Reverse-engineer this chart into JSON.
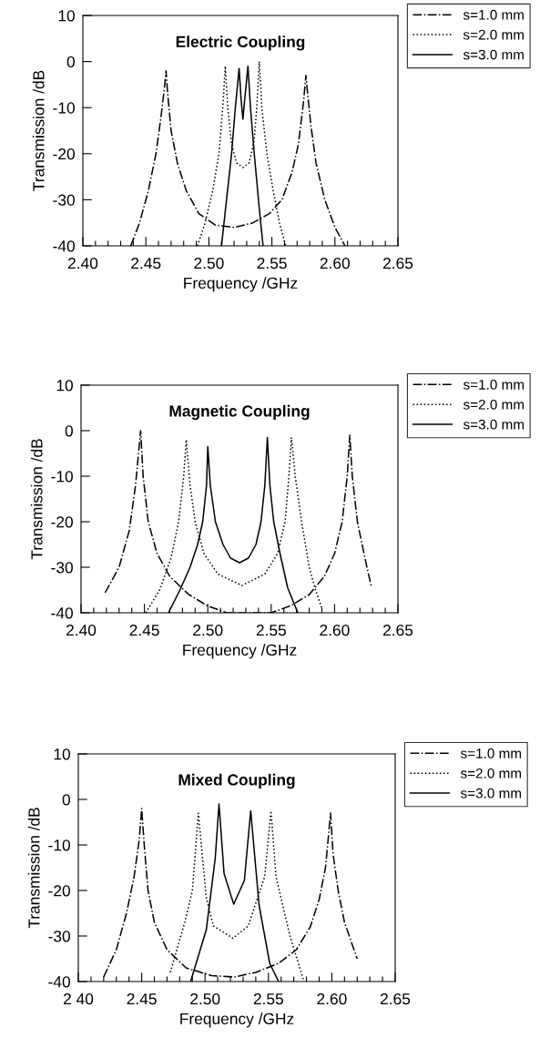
{
  "chart_data": [
    {
      "type": "line",
      "title": "Electric Coupling",
      "xlabel": "Frequency /GHz",
      "ylabel": "Transmission /dB",
      "legend": "top right",
      "grid": false,
      "xlim": [
        2.4,
        2.65
      ],
      "ylim": [
        -40,
        10
      ],
      "xticks": [
        {
          "value": 2.4,
          "label": "2.40"
        },
        {
          "value": 2.41,
          "label": null
        },
        {
          "value": 2.42,
          "label": null
        },
        {
          "value": 2.43,
          "label": null
        },
        {
          "value": 2.44,
          "label": null
        },
        {
          "value": 2.45,
          "label": "2.45"
        },
        {
          "value": 2.46,
          "label": null
        },
        {
          "value": 2.47,
          "label": null
        },
        {
          "value": 2.48,
          "label": null
        },
        {
          "value": 2.49,
          "label": null
        },
        {
          "value": 2.5,
          "label": "2.50"
        },
        {
          "value": 2.51,
          "label": null
        },
        {
          "value": 2.52,
          "label": null
        },
        {
          "value": 2.53,
          "label": null
        },
        {
          "value": 2.54,
          "label": null
        },
        {
          "value": 2.55,
          "label": "2.55"
        },
        {
          "value": 2.56,
          "label": null
        },
        {
          "value": 2.57,
          "label": null
        },
        {
          "value": 2.58,
          "label": null
        },
        {
          "value": 2.59,
          "label": null
        },
        {
          "value": 2.6,
          "label": "2.60"
        },
        {
          "value": 2.61,
          "label": null
        },
        {
          "value": 2.62,
          "label": null
        },
        {
          "value": 2.63,
          "label": null
        },
        {
          "value": 2.64,
          "label": null
        },
        {
          "value": 2.65,
          "label": "2.65"
        }
      ],
      "yticks": [
        10,
        0,
        -10,
        -20,
        -30,
        -40
      ],
      "series": [
        {
          "name": "s=1.0 mm",
          "color": "#000000",
          "line_style": "dashdot",
          "x": [
            2.438,
            2.445,
            2.452,
            2.458,
            2.462,
            2.465,
            2.466,
            2.467,
            2.47,
            2.475,
            2.482,
            2.492,
            2.505,
            2.52,
            2.535,
            2.548,
            2.558,
            2.566,
            2.571,
            2.575,
            2.577,
            2.578,
            2.581,
            2.585,
            2.592,
            2.6,
            2.608
          ],
          "values": [
            -40,
            -35,
            -28,
            -20,
            -12,
            -5,
            -2,
            -6,
            -15,
            -22,
            -28,
            -33,
            -35.5,
            -36,
            -35,
            -33,
            -30,
            -24,
            -18,
            -9,
            -3,
            -6,
            -14,
            -22,
            -30,
            -36,
            -40
          ]
        },
        {
          "name": "s=2.0 mm",
          "color": "#000000",
          "line_style": "dotted",
          "x": [
            2.491,
            2.497,
            2.503,
            2.508,
            2.511,
            2.513,
            2.515,
            2.518,
            2.522,
            2.527,
            2.532,
            2.536,
            2.538,
            2.54,
            2.542,
            2.546,
            2.551,
            2.556,
            2.561
          ],
          "values": [
            -40,
            -35,
            -28,
            -20,
            -10,
            -1,
            -10,
            -18,
            -22,
            -23,
            -22,
            -17,
            -10,
            0,
            -10,
            -20,
            -28,
            -35,
            -40
          ]
        },
        {
          "name": "s=3.0 mm",
          "color": "#000000",
          "line_style": "solid",
          "x": [
            2.51,
            2.514,
            2.518,
            2.521,
            2.524,
            2.5255,
            2.527,
            2.5285,
            2.531,
            2.533,
            2.536,
            2.54,
            2.543
          ],
          "values": [
            -40,
            -30,
            -20,
            -10,
            -1.5,
            -8,
            -12.5,
            -8,
            -1,
            -10,
            -20,
            -32,
            -40
          ]
        }
      ]
    },
    {
      "type": "line",
      "title": "Magnetic Coupling",
      "xlabel": "Frequency /GHz",
      "ylabel": "Transmission /dB",
      "legend": "top right",
      "grid": false,
      "xlim": [
        2.4,
        2.65
      ],
      "ylim": [
        -40,
        10
      ],
      "xticks": [
        {
          "value": 2.4,
          "label": "2.40"
        },
        {
          "value": 2.41,
          "label": null
        },
        {
          "value": 2.42,
          "label": null
        },
        {
          "value": 2.43,
          "label": null
        },
        {
          "value": 2.44,
          "label": null
        },
        {
          "value": 2.45,
          "label": "2.45"
        },
        {
          "value": 2.46,
          "label": null
        },
        {
          "value": 2.47,
          "label": null
        },
        {
          "value": 2.48,
          "label": null
        },
        {
          "value": 2.49,
          "label": null
        },
        {
          "value": 2.5,
          "label": "2.50"
        },
        {
          "value": 2.51,
          "label": null
        },
        {
          "value": 2.52,
          "label": null
        },
        {
          "value": 2.53,
          "label": null
        },
        {
          "value": 2.54,
          "label": null
        },
        {
          "value": 2.55,
          "label": "2.55"
        },
        {
          "value": 2.56,
          "label": null
        },
        {
          "value": 2.57,
          "label": null
        },
        {
          "value": 2.58,
          "label": null
        },
        {
          "value": 2.59,
          "label": null
        },
        {
          "value": 2.6,
          "label": "2.60"
        },
        {
          "value": 2.61,
          "label": null
        },
        {
          "value": 2.62,
          "label": null
        },
        {
          "value": 2.63,
          "label": null
        },
        {
          "value": 2.64,
          "label": null
        },
        {
          "value": 2.65,
          "label": "2.65"
        }
      ],
      "yticks": [
        10,
        0,
        -10,
        -20,
        -30,
        -40
      ],
      "series": [
        {
          "name": "s=1.0 mm",
          "color": "#000000",
          "line_style": "dashdot",
          "x": [
            2.419,
            2.43,
            2.438,
            2.443,
            2.447,
            2.449,
            2.453,
            2.46,
            2.47,
            2.485,
            2.5,
            2.515,
            2.55,
            2.565,
            2.58,
            2.592,
            2.6,
            2.606,
            2.61,
            2.612,
            2.614,
            2.618,
            2.624,
            2.629
          ],
          "values": [
            -35.6,
            -30,
            -22,
            -12,
            0,
            -10,
            -20,
            -27,
            -32,
            -36,
            -38.5,
            -40,
            -40,
            -38.5,
            -36,
            -32,
            -27,
            -20,
            -10,
            -1,
            -10,
            -20,
            -28,
            -34.3
          ]
        },
        {
          "name": "s=2.0 mm",
          "color": "#000000",
          "line_style": "dotted",
          "x": [
            2.451,
            2.462,
            2.471,
            2.477,
            2.481,
            2.483,
            2.486,
            2.49,
            2.497,
            2.508,
            2.527,
            2.545,
            2.555,
            2.561,
            2.564,
            2.566,
            2.569,
            2.574,
            2.58,
            2.585,
            2.59
          ],
          "values": [
            -40,
            -35,
            -28,
            -20,
            -10,
            -2,
            -12,
            -20,
            -27,
            -31.5,
            -34,
            -31.5,
            -27,
            -20,
            -10,
            -1.5,
            -10,
            -20,
            -30,
            -35,
            -39
          ]
        },
        {
          "name": "s=3.0 mm",
          "color": "#000000",
          "line_style": "solid",
          "x": [
            2.469,
            2.478,
            2.486,
            2.492,
            2.496,
            2.499,
            2.5,
            2.502,
            2.506,
            2.512,
            2.518,
            2.525,
            2.532,
            2.538,
            2.542,
            2.545,
            2.547,
            2.549,
            2.552,
            2.557,
            2.563,
            2.571
          ],
          "values": [
            -40,
            -35,
            -30,
            -25,
            -20,
            -12,
            -3.5,
            -12,
            -20,
            -25,
            -28,
            -29,
            -28,
            -25,
            -20,
            -12,
            -1.5,
            -12,
            -20,
            -27,
            -34.5,
            -40
          ]
        }
      ]
    },
    {
      "type": "line",
      "title": "Mixed Coupling",
      "xlabel": "Frequency /GHz",
      "ylabel": "Transmission /dB",
      "legend": "top right",
      "grid": false,
      "xlim": [
        2.4,
        2.65
      ],
      "ylim": [
        -40,
        10
      ],
      "xticks": [
        {
          "value": 2.4,
          "label": "2 40"
        },
        {
          "value": 2.41,
          "label": null
        },
        {
          "value": 2.42,
          "label": null
        },
        {
          "value": 2.43,
          "label": null
        },
        {
          "value": 2.44,
          "label": null
        },
        {
          "value": 2.45,
          "label": "2.45"
        },
        {
          "value": 2.46,
          "label": null
        },
        {
          "value": 2.47,
          "label": null
        },
        {
          "value": 2.48,
          "label": null
        },
        {
          "value": 2.49,
          "label": null
        },
        {
          "value": 2.5,
          "label": "2.50"
        },
        {
          "value": 2.51,
          "label": null
        },
        {
          "value": 2.52,
          "label": null
        },
        {
          "value": 2.53,
          "label": null
        },
        {
          "value": 2.54,
          "label": null
        },
        {
          "value": 2.55,
          "label": "2.55"
        },
        {
          "value": 2.56,
          "label": null
        },
        {
          "value": 2.57,
          "label": null
        },
        {
          "value": 2.58,
          "label": null
        },
        {
          "value": 2.59,
          "label": null
        },
        {
          "value": 2.6,
          "label": "2.60"
        },
        {
          "value": 2.61,
          "label": null
        },
        {
          "value": 2.62,
          "label": null
        },
        {
          "value": 2.63,
          "label": null
        },
        {
          "value": 2.64,
          "label": null
        },
        {
          "value": 2.65,
          "label": "2.65"
        }
      ],
      "yticks": [
        10,
        0,
        -10,
        -20,
        -30,
        -40
      ],
      "series": [
        {
          "name": "s=1.0 mm",
          "color": "#000000",
          "line_style": "dashdot",
          "x": [
            2.42,
            2.43,
            2.438,
            2.444,
            2.448,
            2.45,
            2.452,
            2.455,
            2.46,
            2.47,
            2.485,
            2.505,
            2.523,
            2.54,
            2.558,
            2.572,
            2.583,
            2.59,
            2.595,
            2.599,
            2.601,
            2.605,
            2.61,
            2.62
          ],
          "values": [
            -39,
            -33,
            -25,
            -17,
            -9,
            -2,
            -10,
            -20,
            -27,
            -33,
            -37,
            -38.7,
            -39,
            -38,
            -36,
            -33,
            -28,
            -22,
            -15,
            -3,
            -12,
            -20,
            -27,
            -35
          ]
        },
        {
          "name": "s=2.0 mm",
          "color": "#000000",
          "line_style": "dotted",
          "x": [
            2.4725,
            2.484,
            2.49,
            2.4947,
            2.501,
            2.5066,
            2.522,
            2.534,
            2.547,
            2.552,
            2.556,
            2.567,
            2.578
          ],
          "values": [
            -38,
            -27,
            -20,
            -3,
            -21.7,
            -27.8,
            -30.5,
            -27.8,
            -17,
            -2.5,
            -17,
            -30,
            -40
          ]
        },
        {
          "name": "s=3.0 mm",
          "color": "#000000",
          "line_style": "solid",
          "x": [
            2.4886,
            2.501,
            2.508,
            2.511,
            2.515,
            2.5226,
            2.531,
            2.536,
            2.5426,
            2.551,
            2.558
          ],
          "values": [
            -40,
            -28.6,
            -13,
            -1,
            -16.3,
            -23,
            -17.8,
            -2.5,
            -23.2,
            -36,
            -40
          ]
        }
      ]
    }
  ]
}
